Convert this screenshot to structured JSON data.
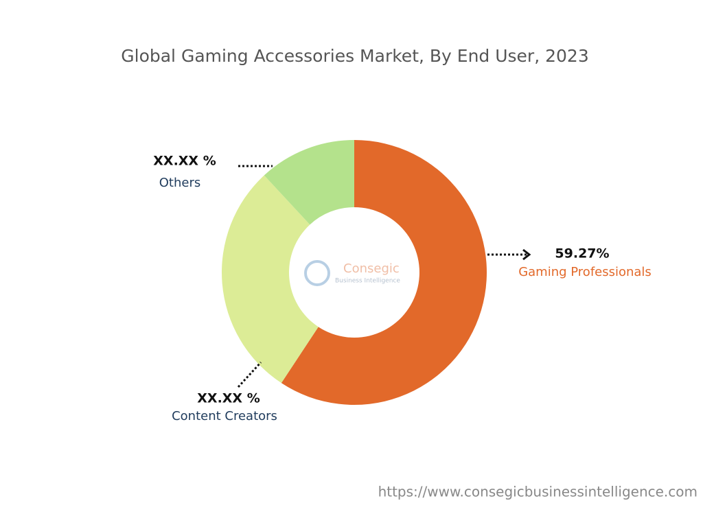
{
  "chart_data": {
    "type": "donut",
    "title": "Global Gaming Accessories Market, By End User, 2023",
    "categories": [
      "Gaming Professionals",
      "Content Creators",
      "Others"
    ],
    "values": [
      59.27,
      28.83,
      11.9
    ],
    "value_labels": [
      "59.27%",
      "XX.XX %",
      "XX.XX %"
    ],
    "colors": [
      "#e2692a",
      "#dcec96",
      "#b4e28c"
    ],
    "watermark": {
      "name": "Consegic",
      "tagline": "Business Intelligence"
    },
    "source": "https://www.consegicbusinessintelligence.com"
  }
}
